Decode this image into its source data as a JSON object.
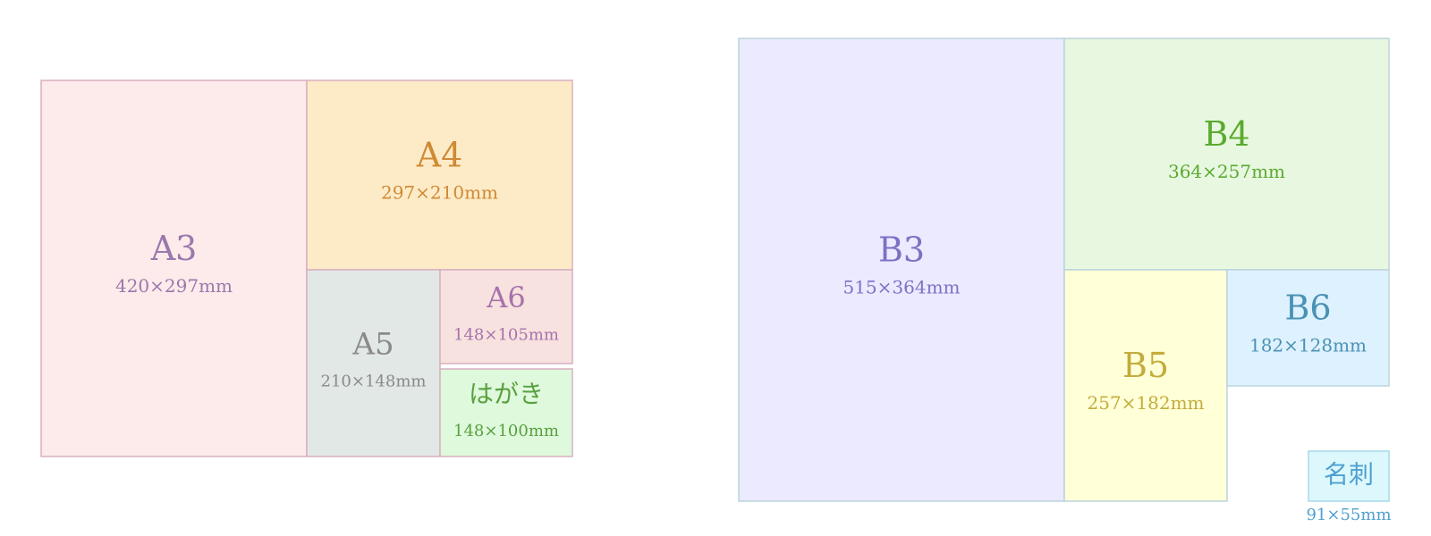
{
  "nodes": [
    {
      "label": "A3",
      "size": "420×297mm"
    },
    {
      "label": "A4",
      "size": "297×210mm"
    },
    {
      "label": "A5",
      "size": "210×148mm"
    },
    {
      "label": "A6",
      "size": "148×105mm"
    },
    {
      "label": "はがき",
      "size": "148×100mm"
    },
    {
      "label": "B3",
      "size": "515×364mm"
    },
    {
      "label": "B4",
      "size": "364×257mm"
    },
    {
      "label": "B5",
      "size": "257×182mm"
    },
    {
      "label": "B6",
      "size": "182×128mm"
    },
    {
      "label": "名刺",
      "size": "91×55mm"
    }
  ]
}
